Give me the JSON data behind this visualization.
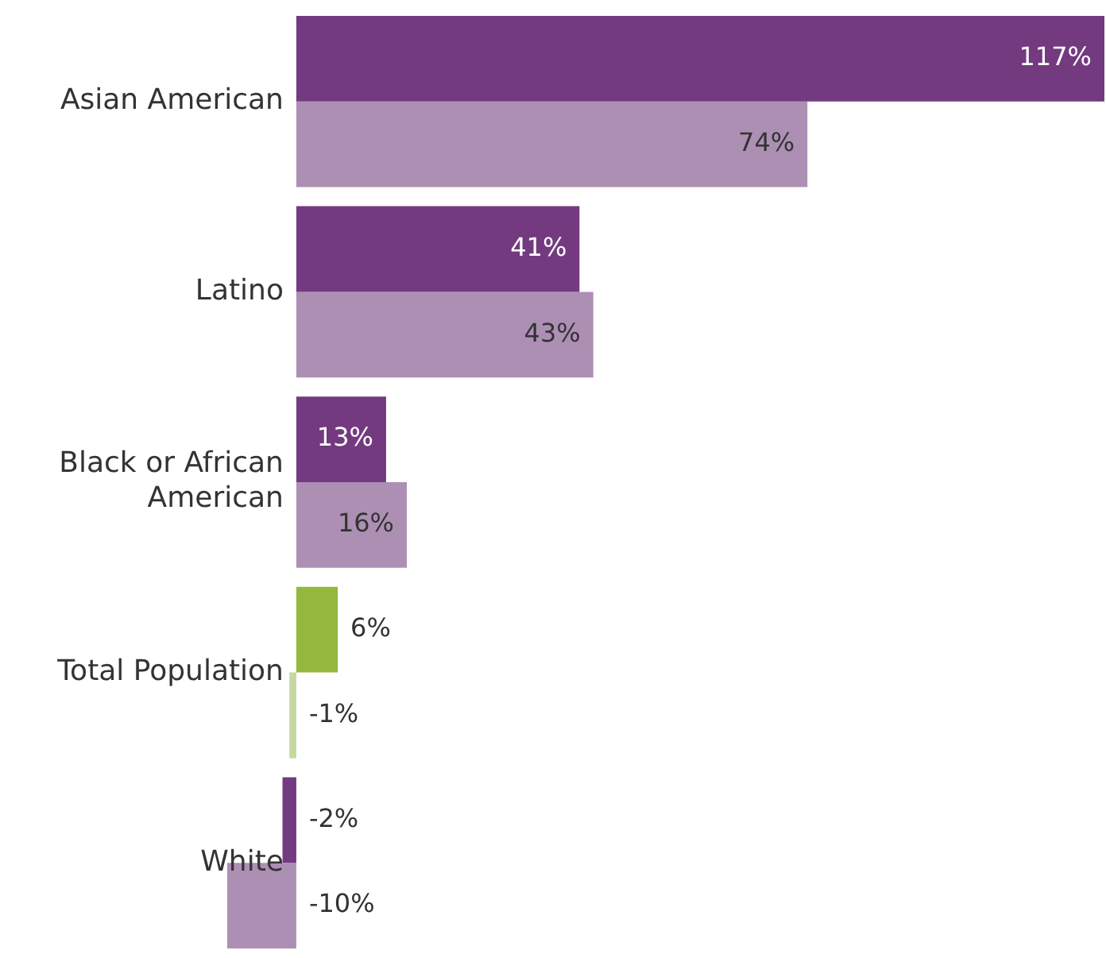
{
  "chart_data": {
    "type": "bar",
    "orientation": "horizontal",
    "categories": [
      "Asian American",
      "Latino",
      "Black or African American",
      "Total Population",
      "White"
    ],
    "series": [
      {
        "colors": [
          "#743a80",
          "#743a80",
          "#743a80",
          "#94b83c",
          "#743a80"
        ],
        "values": [
          117,
          41,
          13,
          6,
          -2
        ],
        "value_labels": [
          "117%",
          "41%",
          "13%",
          "6%",
          "-2%"
        ]
      },
      {
        "colors": [
          "#ad8fb4",
          "#ad8fb4",
          "#ad8fb4",
          "#c5d8a0",
          "#ad8fb4"
        ],
        "values": [
          74,
          43,
          16,
          -1,
          -10
        ],
        "value_labels": [
          "74%",
          "43%",
          "16%",
          "-1%",
          "-10%"
        ]
      }
    ],
    "legend": false
  }
}
